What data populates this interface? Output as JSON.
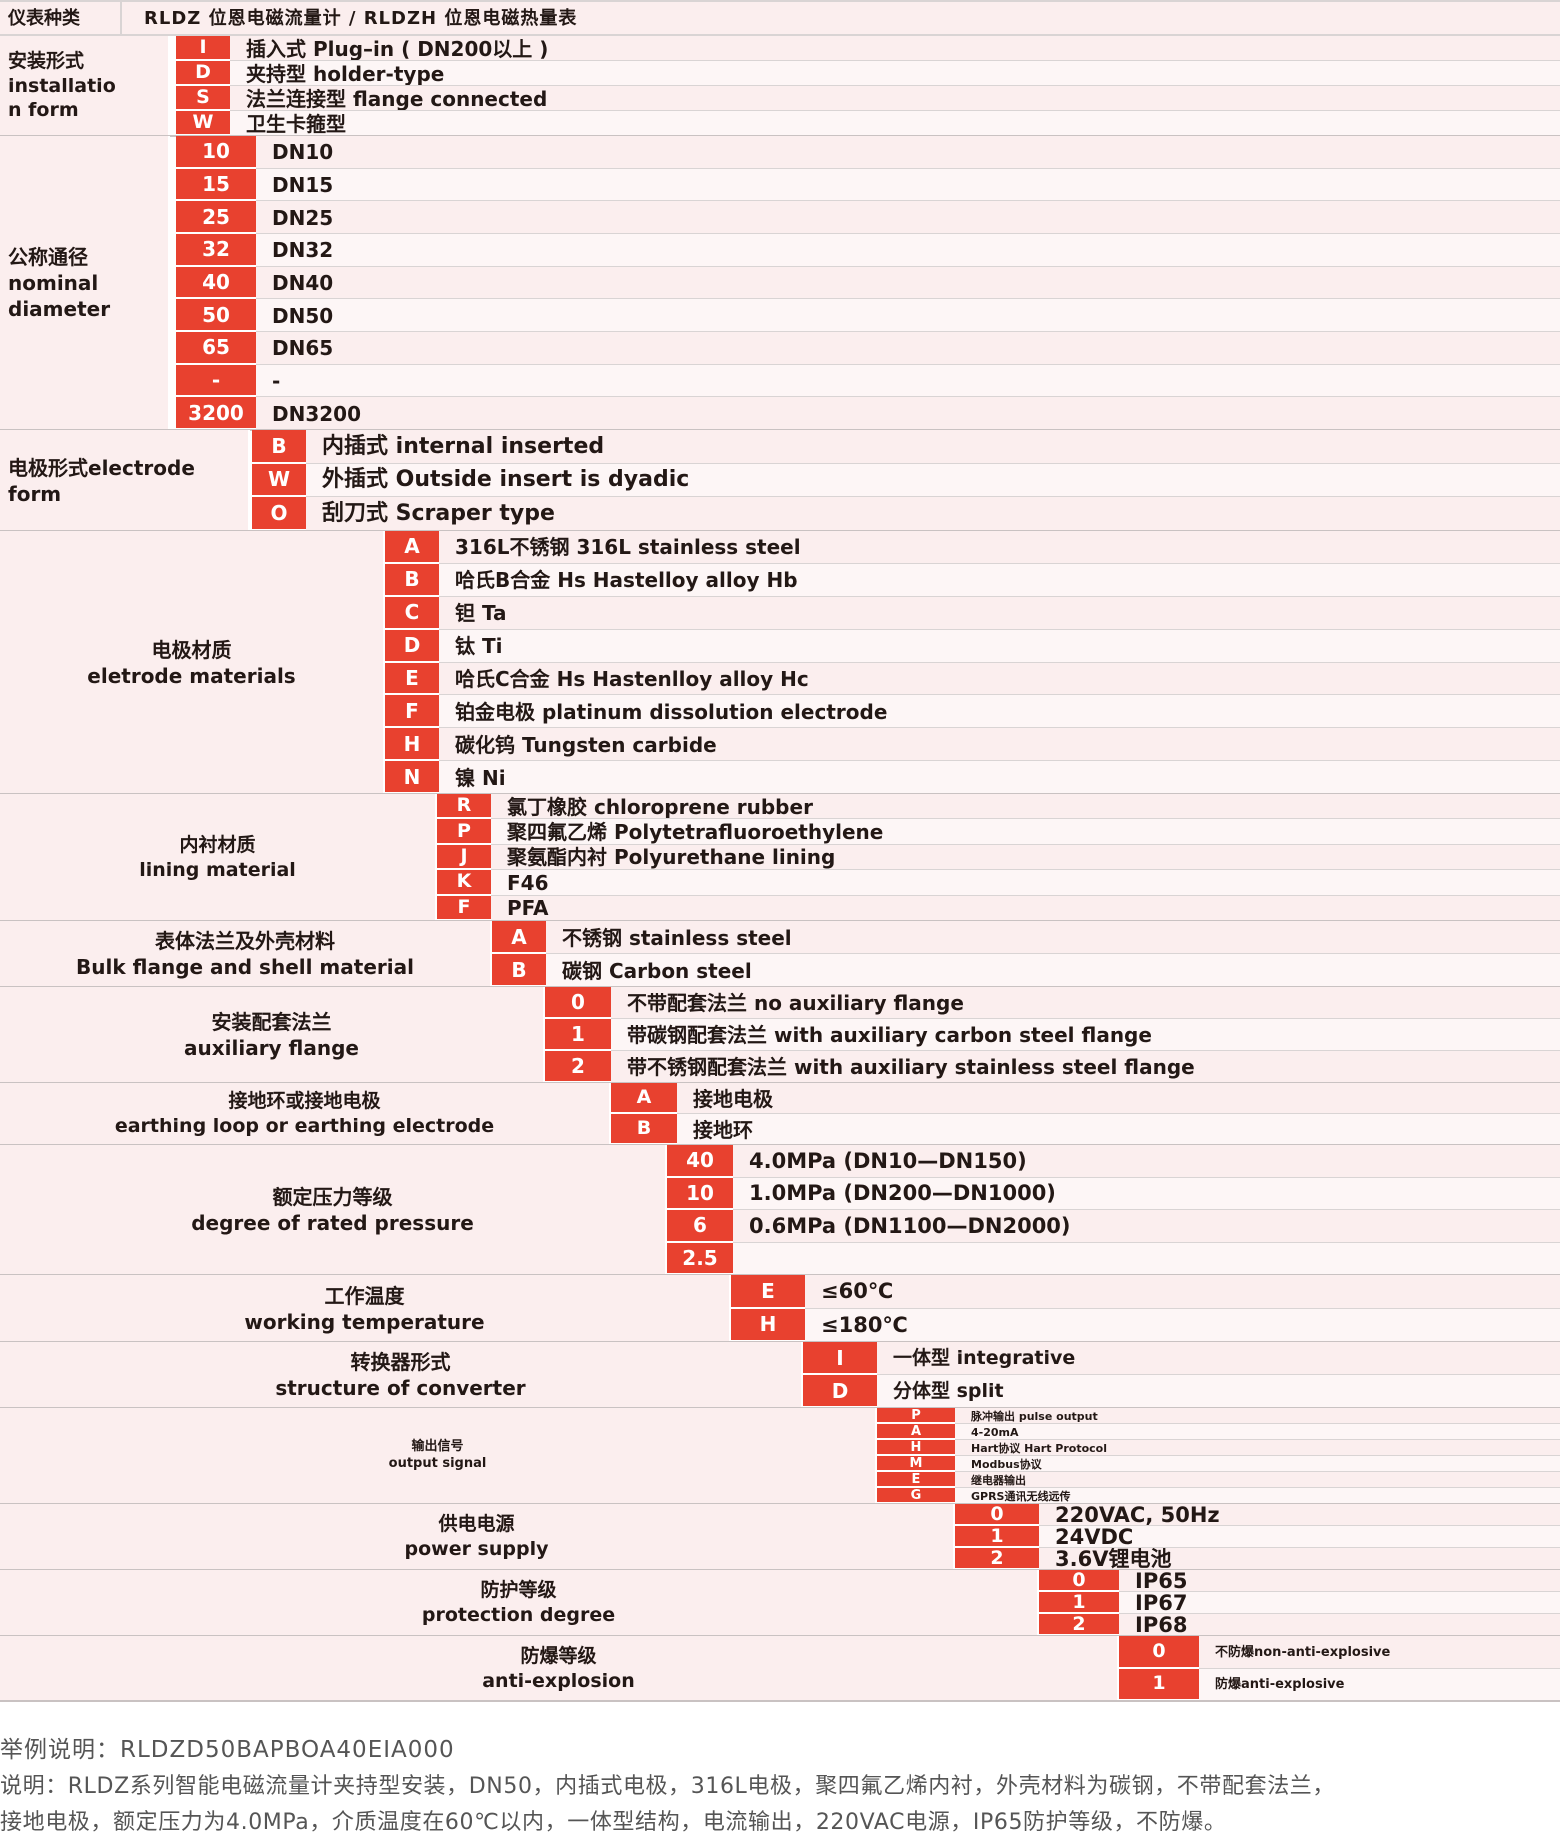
{
  "header": {
    "label": "仪表种类",
    "title": "RLDZ 位恩电磁流量计 / RLDZH 位恩电磁热量表"
  },
  "groups": [
    {
      "label": "安装形式\ninstallatio\nn form",
      "align": "left",
      "items": [
        {
          "code": "I",
          "text": "插入式 Plug–in ( DN200以上 )"
        },
        {
          "code": "D",
          "text": "夹持型  holder-type"
        },
        {
          "code": "S",
          "text": "法兰连接型  flange connected"
        },
        {
          "code": "W",
          "text": "卫生卡箍型"
        }
      ]
    },
    {
      "label": "公称通径\nnominal\ndiameter",
      "align": "left",
      "items": [
        {
          "code": "10",
          "text": "DN10"
        },
        {
          "code": "15",
          "text": "DN15"
        },
        {
          "code": "25",
          "text": "DN25"
        },
        {
          "code": "32",
          "text": "DN32"
        },
        {
          "code": "40",
          "text": "DN40"
        },
        {
          "code": "50",
          "text": "DN50"
        },
        {
          "code": "65",
          "text": "DN65"
        },
        {
          "code": "-",
          "text": "-"
        },
        {
          "code": "3200",
          "text": "DN3200"
        }
      ]
    },
    {
      "label": "电极形式electrode form",
      "align": "left",
      "items": [
        {
          "code": "B",
          "text": "内插式  internal inserted"
        },
        {
          "code": "W",
          "text": "外插式 Outside insert is dyadic"
        },
        {
          "code": "O",
          "text": "刮刀式 Scraper type"
        }
      ]
    },
    {
      "label": "电极材质\neletrode materials",
      "align": "center",
      "items": [
        {
          "code": "A",
          "text": "316L不锈钢  316L stainless steel"
        },
        {
          "code": "B",
          "text": "哈氏B合金  Hs Hastelloy alloy Hb"
        },
        {
          "code": "C",
          "text": "钽 Ta"
        },
        {
          "code": "D",
          "text": "钛 Ti"
        },
        {
          "code": "E",
          "text": "哈氏C合金  Hs Hastenlloy alloy Hc"
        },
        {
          "code": "F",
          "text": "铂金电极  platinum dissolution electrode"
        },
        {
          "code": "H",
          "text": "碳化钨  Tungsten carbide"
        },
        {
          "code": "N",
          "text": "镍 Ni"
        }
      ]
    },
    {
      "label": "内衬材质\nlining material",
      "align": "center",
      "items": [
        {
          "code": "R",
          "text": "氯丁橡胶  chloroprene rubber"
        },
        {
          "code": "P",
          "text": "聚四氟乙烯  Polytetrafluoroethylene"
        },
        {
          "code": "J",
          "text": "聚氨酯内衬  Polyurethane lining"
        },
        {
          "code": "K",
          "text": "F46"
        },
        {
          "code": "F",
          "text": "PFA"
        }
      ]
    },
    {
      "label": "表体法兰及外壳材料\nBulk flange and shell material",
      "align": "center",
      "items": [
        {
          "code": "A",
          "text": "不锈钢  stainless steel"
        },
        {
          "code": "B",
          "text": "碳钢    Carbon steel"
        }
      ]
    },
    {
      "label": "安装配套法兰\nauxiliary flange",
      "align": "center",
      "items": [
        {
          "code": "0",
          "text": "不带配套法兰  no auxiliary flange"
        },
        {
          "code": "1",
          "text": "带碳钢配套法兰  with auxiliary carbon steel flange"
        },
        {
          "code": "2",
          "text": "带不锈钢配套法兰  with auxiliary stainless steel flange"
        }
      ]
    },
    {
      "label": "接地环或接地电极\nearthing loop or earthing electrode",
      "align": "center",
      "items": [
        {
          "code": "A",
          "text": "接地电极"
        },
        {
          "code": "B",
          "text": "接地环"
        }
      ]
    },
    {
      "label": "额定压力等级\ndegree of rated pressure",
      "align": "center",
      "items": [
        {
          "code": "40",
          "text": "4.0MPa  (DN10—DN150)"
        },
        {
          "code": "10",
          "text": "1.0MPa  (DN200—DN1000)"
        },
        {
          "code": "6",
          "text": "0.6MPa  (DN1100—DN2000)"
        },
        {
          "code": "2.5",
          "text": ""
        }
      ]
    },
    {
      "label": "工作温度\nworking temperature",
      "align": "center",
      "items": [
        {
          "code": "E",
          "text": "≤60℃"
        },
        {
          "code": "H",
          "text": "≤180℃"
        }
      ]
    },
    {
      "label": "转换器形式\nstructure of converter",
      "align": "center",
      "items": [
        {
          "code": "I",
          "text": "一体型  integrative"
        },
        {
          "code": "D",
          "text": "分体型  split"
        }
      ]
    },
    {
      "label": "输出信号\noutput signal",
      "align": "center",
      "items": [
        {
          "code": "P",
          "text": "脉冲输出 pulse output"
        },
        {
          "code": "A",
          "text": "4-20mA"
        },
        {
          "code": "H",
          "text": "Hart协议  Hart Protocol"
        },
        {
          "code": "M",
          "text": "Modbus协议"
        },
        {
          "code": "E",
          "text": "继电器输出"
        },
        {
          "code": "G",
          "text": "GPRS通讯无线远传"
        }
      ]
    },
    {
      "label": "供电电源\npower supply",
      "align": "center",
      "items": [
        {
          "code": "0",
          "text": "220VAC,  50Hz"
        },
        {
          "code": "1",
          "text": "24VDC"
        },
        {
          "code": "2",
          "text": "3.6V锂电池"
        }
      ]
    },
    {
      "label": "防护等级\nprotection degree",
      "align": "center",
      "items": [
        {
          "code": "0",
          "text": "IP65"
        },
        {
          "code": "1",
          "text": "IP67"
        },
        {
          "code": "2",
          "text": "IP68"
        }
      ]
    },
    {
      "label": "防爆等级\nanti-explosion",
      "align": "center",
      "items": [
        {
          "code": "0",
          "text": "不防爆non-anti-explosive"
        },
        {
          "code": "1",
          "text": "防爆anti-explosive"
        }
      ]
    }
  ],
  "footer": {
    "example": "举例说明：RLDZD50BAPBOA40EIA000",
    "explanation_line1": "    说明：RLDZ系列智能电磁流量计夹持型安装，DN50，内插式电极，316L电极，聚四氟乙烯内衬，外壳材料为碳钢，不带配套法兰，",
    "explanation_line2": "接地电极，额定压力为4.0MPa，介质温度在60℃以内，一体型结构，电流输出，220VAC电源，IP65防护等级，不防爆。"
  },
  "colors": {
    "code_bg": "#e8412f",
    "row_bg": "#fbeeee",
    "rule": "#d9d4d4",
    "text": "#231815"
  }
}
